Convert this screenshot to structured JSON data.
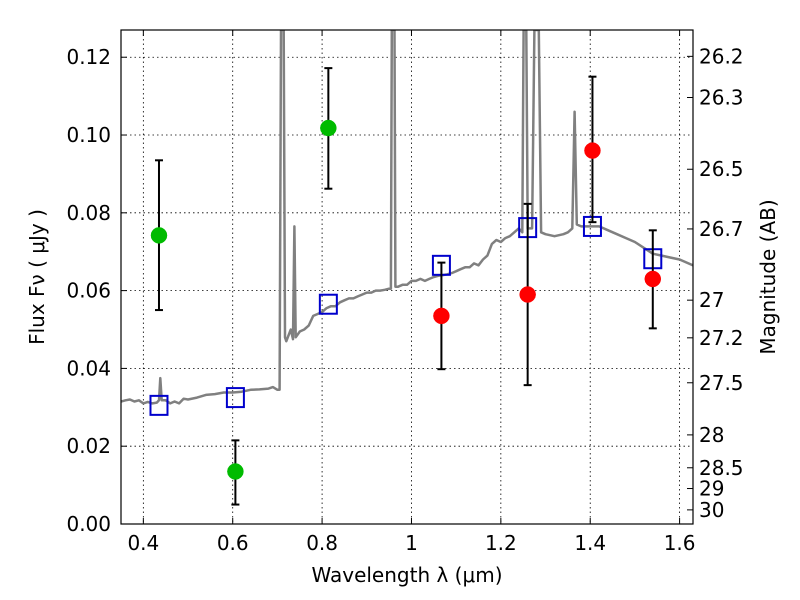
{
  "chart_data": {
    "type": "scatter",
    "xlabel": "Wavelength  λ (μm)",
    "ylabel": "Flux  Fν  ( μJy )",
    "y2label": "Magnitude (AB)",
    "xlim": [
      0.35,
      1.63
    ],
    "ylim": [
      0.0,
      0.127
    ],
    "grid": true,
    "x_ticks": [
      0.4,
      0.6,
      0.8,
      1.0,
      1.2,
      1.4,
      1.6
    ],
    "x_tick_labels": [
      "0.4",
      "0.6",
      "0.8",
      "1",
      "1.2",
      "1.4",
      "1.6"
    ],
    "y_ticks": [
      0.0,
      0.02,
      0.04,
      0.06,
      0.08,
      0.1,
      0.12
    ],
    "y_tick_labels": [
      "0.00",
      "0.02",
      "0.04",
      "0.06",
      "0.08",
      "0.10",
      "0.12"
    ],
    "mag_ticks": [
      26.2,
      26.3,
      26.5,
      26.7,
      27,
      27.2,
      27.5,
      28,
      28.5,
      29,
      30
    ],
    "mag_tick_labels": [
      "26.2",
      "26.3",
      "26.5",
      "26.7",
      "27",
      "27.2",
      "27.5",
      "28",
      "28.5",
      "29",
      "30"
    ],
    "series": [
      {
        "name": "model_spectrum",
        "style": "line",
        "color": "#808080",
        "points": [
          [
            0.35,
            0.0315
          ],
          [
            0.36,
            0.0318
          ],
          [
            0.37,
            0.032
          ],
          [
            0.38,
            0.0315
          ],
          [
            0.39,
            0.0318
          ],
          [
            0.4,
            0.031
          ],
          [
            0.41,
            0.0314
          ],
          [
            0.42,
            0.031
          ],
          [
            0.43,
            0.0312
          ],
          [
            0.435,
            0.0318
          ],
          [
            0.438,
            0.0375
          ],
          [
            0.441,
            0.0318
          ],
          [
            0.45,
            0.0318
          ],
          [
            0.46,
            0.031
          ],
          [
            0.47,
            0.0315
          ],
          [
            0.48,
            0.031
          ],
          [
            0.49,
            0.0322
          ],
          [
            0.5,
            0.032
          ],
          [
            0.52,
            0.0325
          ],
          [
            0.54,
            0.0332
          ],
          [
            0.56,
            0.0334
          ],
          [
            0.58,
            0.0338
          ],
          [
            0.6,
            0.0338
          ],
          [
            0.62,
            0.034
          ],
          [
            0.64,
            0.0345
          ],
          [
            0.66,
            0.0346
          ],
          [
            0.68,
            0.0348
          ],
          [
            0.69,
            0.0352
          ],
          [
            0.7,
            0.0345
          ],
          [
            0.705,
            0.0345
          ],
          [
            0.708,
            0.127
          ],
          [
            0.714,
            0.127
          ],
          [
            0.717,
            0.048
          ],
          [
            0.72,
            0.047
          ],
          [
            0.73,
            0.05
          ],
          [
            0.735,
            0.0475
          ],
          [
            0.738,
            0.0765
          ],
          [
            0.741,
            0.048
          ],
          [
            0.75,
            0.0495
          ],
          [
            0.76,
            0.05
          ],
          [
            0.77,
            0.051
          ],
          [
            0.78,
            0.0535
          ],
          [
            0.79,
            0.054
          ],
          [
            0.8,
            0.0545
          ],
          [
            0.81,
            0.0555
          ],
          [
            0.82,
            0.056
          ],
          [
            0.83,
            0.056
          ],
          [
            0.84,
            0.057
          ],
          [
            0.85,
            0.0575
          ],
          [
            0.86,
            0.058
          ],
          [
            0.87,
            0.058
          ],
          [
            0.88,
            0.0585
          ],
          [
            0.89,
            0.059
          ],
          [
            0.9,
            0.0595
          ],
          [
            0.91,
            0.0595
          ],
          [
            0.92,
            0.06
          ],
          [
            0.93,
            0.06
          ],
          [
            0.94,
            0.0602
          ],
          [
            0.95,
            0.0605
          ],
          [
            0.954,
            0.0605
          ],
          [
            0.956,
            0.127
          ],
          [
            0.962,
            0.127
          ],
          [
            0.964,
            0.061
          ],
          [
            0.97,
            0.061
          ],
          [
            0.98,
            0.0615
          ],
          [
            0.99,
            0.0615
          ],
          [
            1.0,
            0.0625
          ],
          [
            1.01,
            0.0625
          ],
          [
            1.02,
            0.063
          ],
          [
            1.03,
            0.0625
          ],
          [
            1.04,
            0.063
          ],
          [
            1.05,
            0.0635
          ],
          [
            1.06,
            0.0638
          ],
          [
            1.07,
            0.064
          ],
          [
            1.08,
            0.0642
          ],
          [
            1.09,
            0.0645
          ],
          [
            1.1,
            0.065
          ],
          [
            1.11,
            0.0655
          ],
          [
            1.12,
            0.066
          ],
          [
            1.13,
            0.066
          ],
          [
            1.14,
            0.067
          ],
          [
            1.15,
            0.0665
          ],
          [
            1.16,
            0.068
          ],
          [
            1.17,
            0.069
          ],
          [
            1.18,
            0.072
          ],
          [
            1.19,
            0.073
          ],
          [
            1.2,
            0.0725
          ],
          [
            1.21,
            0.0735
          ],
          [
            1.22,
            0.074
          ],
          [
            1.23,
            0.075
          ],
          [
            1.24,
            0.076
          ],
          [
            1.248,
            0.075
          ],
          [
            1.251,
            0.127
          ],
          [
            1.257,
            0.127
          ],
          [
            1.26,
            0.076
          ],
          [
            1.27,
            0.076
          ],
          [
            1.275,
            0.127
          ],
          [
            1.285,
            0.127
          ],
          [
            1.29,
            0.075
          ],
          [
            1.3,
            0.0745
          ],
          [
            1.32,
            0.074
          ],
          [
            1.34,
            0.0745
          ],
          [
            1.35,
            0.075
          ],
          [
            1.36,
            0.076
          ],
          [
            1.365,
            0.106
          ],
          [
            1.37,
            0.077
          ],
          [
            1.38,
            0.0765
          ],
          [
            1.4,
            0.0765
          ],
          [
            1.42,
            0.0765
          ],
          [
            1.44,
            0.0755
          ],
          [
            1.46,
            0.0745
          ],
          [
            1.48,
            0.0735
          ],
          [
            1.5,
            0.0725
          ],
          [
            1.52,
            0.071
          ],
          [
            1.54,
            0.0695
          ],
          [
            1.56,
            0.069
          ],
          [
            1.58,
            0.0685
          ],
          [
            1.6,
            0.068
          ],
          [
            1.63,
            0.0665
          ]
        ]
      },
      {
        "name": "model_bands",
        "style": "open-square",
        "color": "#0000cc",
        "points": [
          [
            0.435,
            0.0305
          ],
          [
            0.606,
            0.0325
          ],
          [
            0.814,
            0.0565
          ],
          [
            1.067,
            0.0665
          ],
          [
            1.26,
            0.0762
          ],
          [
            1.405,
            0.0765
          ],
          [
            1.54,
            0.0682
          ]
        ]
      },
      {
        "name": "detections_green",
        "style": "filled-circle",
        "color": "#00bb00",
        "points": [
          [
            0.435,
            0.0742
          ],
          [
            0.606,
            0.0135
          ],
          [
            0.814,
            0.1018
          ]
        ],
        "errors": [
          [
            0.055,
            0.0935
          ],
          [
            0.005,
            0.0215
          ],
          [
            0.0862,
            0.1172
          ]
        ]
      },
      {
        "name": "detections_red",
        "style": "filled-circle",
        "color": "#ff0000",
        "points": [
          [
            1.067,
            0.0535
          ],
          [
            1.26,
            0.059
          ],
          [
            1.405,
            0.096
          ],
          [
            1.54,
            0.063
          ]
        ],
        "errors": [
          [
            0.0398,
            0.0672
          ],
          [
            0.0357,
            0.0823
          ],
          [
            0.0776,
            0.115
          ],
          [
            0.0503,
            0.0755
          ]
        ]
      }
    ]
  }
}
